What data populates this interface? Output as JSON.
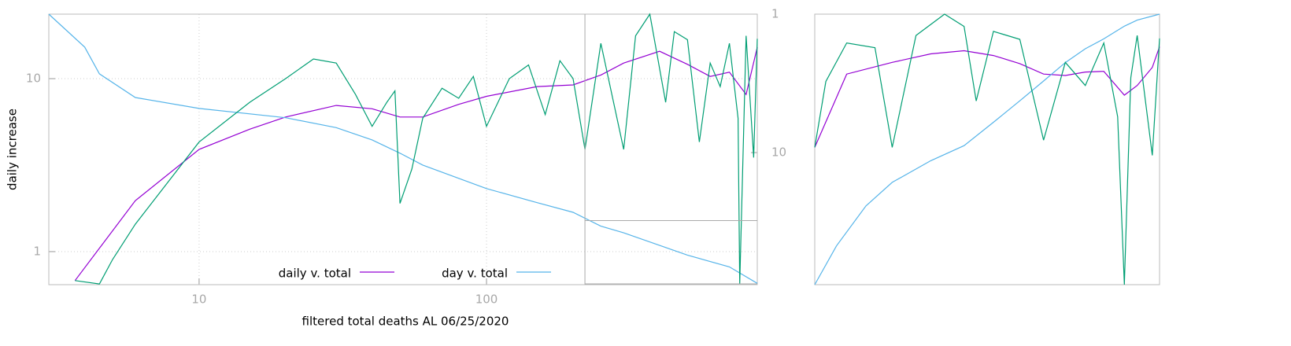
{
  "chart_data": [
    {
      "type": "line",
      "xlabel": "filtered total deaths AL 06/25/2020",
      "ylabel": "daily increase",
      "log_x": true,
      "log_y": true,
      "log_y2": true,
      "y2_reversed": true,
      "xlim": [
        3,
        875
      ],
      "ylim": [
        0.644,
        23.6
      ],
      "y2lim": [
        1,
        90
      ],
      "xticks": [
        10,
        100
      ],
      "yticks": [
        1,
        10
      ],
      "y2ticks": [
        1,
        10
      ],
      "grid": true,
      "legend": "bottom",
      "series": [
        {
          "name": "daily v. total",
          "color": "#9400d3",
          "x": [
            3.7,
            6,
            10,
            15,
            20,
            30,
            40,
            50,
            60,
            80,
            100,
            150,
            200,
            250,
            300,
            400,
            500,
            600,
            700,
            800,
            875
          ],
          "values": [
            0.68,
            1.97,
            3.9,
            5.1,
            6.0,
            7.0,
            6.7,
            6.0,
            6.0,
            7.1,
            7.9,
            9.0,
            9.2,
            10.5,
            12.3,
            14.4,
            12.1,
            10.3,
            10.9,
            8.1,
            15.2
          ]
        },
        {
          "name": "day v. total",
          "color": "#56b4e9",
          "axis": "y2",
          "x": [
            3,
            4,
            4.5,
            6,
            10,
            20,
            30,
            40,
            50,
            60,
            100,
            150,
            200,
            250,
            300,
            500,
            700,
            875
          ],
          "values": [
            1.0,
            1.73,
            2.7,
            4.0,
            4.8,
            5.6,
            6.6,
            8.1,
            10.1,
            12.3,
            18.2,
            23,
            27,
            34,
            38,
            55,
            67,
            88
          ]
        },
        {
          "color": "#009e73",
          "x": [
            3.7,
            4.5,
            5,
            6,
            10,
            15,
            20,
            25,
            30,
            35,
            40,
            45,
            48,
            50,
            55,
            60,
            70,
            80,
            90,
            100,
            120,
            140,
            160,
            180,
            200,
            220,
            250,
            300,
            330,
            370,
            420,
            450,
            500,
            550,
            600,
            650,
            700,
            750,
            760,
            800,
            850,
            875
          ],
          "values": [
            0.68,
            0.65,
            0.9,
            1.44,
            4.3,
            7.3,
            10,
            13,
            12.3,
            8.1,
            5.3,
            7.3,
            8.5,
            1.9,
            3.0,
            5.9,
            8.8,
            7.7,
            10.3,
            5.3,
            10,
            12,
            6.2,
            12.7,
            10,
            3.9,
            16,
            3.9,
            17.7,
            23.6,
            7.3,
            18.7,
            16.8,
            4.3,
            12.3,
            9,
            16,
            5.9,
            0.65,
            17.7,
            3.5,
            17
          ]
        }
      ]
    },
    {
      "type": "line",
      "log_x": true,
      "log_y": true,
      "log_y2": true,
      "xlim": [
        220,
        875
      ],
      "ylim": [
        0.61,
        23.6
      ],
      "y2lim": [
        31,
        88
      ],
      "series": [
        {
          "color": "#9400d3",
          "x": [
            220,
            250,
            300,
            350,
            400,
            450,
            500,
            550,
            600,
            650,
            700,
            760,
            800,
            850,
            875
          ],
          "values": [
            3.9,
            10.5,
            12.3,
            13.8,
            14.4,
            13.5,
            12.1,
            10.5,
            10.3,
            10.8,
            10.9,
            7.9,
            9.0,
            11.5,
            15.2
          ]
        },
        {
          "color": "#56b4e9",
          "axis": "y2",
          "x": [
            220,
            240,
            270,
            300,
            350,
            400,
            450,
            500,
            550,
            600,
            650,
            700,
            760,
            800,
            875
          ],
          "values": [
            31,
            36,
            42,
            46,
            50,
            53,
            58,
            63,
            68,
            73,
            77,
            80,
            84,
            86,
            88
          ]
        },
        {
          "color": "#009e73",
          "x": [
            220,
            230,
            250,
            280,
            300,
            330,
            370,
            400,
            420,
            450,
            500,
            550,
            600,
            650,
            700,
            740,
            760,
            780,
            800,
            850,
            875
          ],
          "values": [
            3.9,
            9.5,
            16,
            15,
            3.9,
            17.7,
            23.6,
            20,
            7.3,
            18.7,
            16.8,
            4.3,
            12.3,
            9,
            16,
            5.9,
            0.61,
            10,
            17.7,
            3.5,
            17
          ]
        }
      ]
    }
  ]
}
